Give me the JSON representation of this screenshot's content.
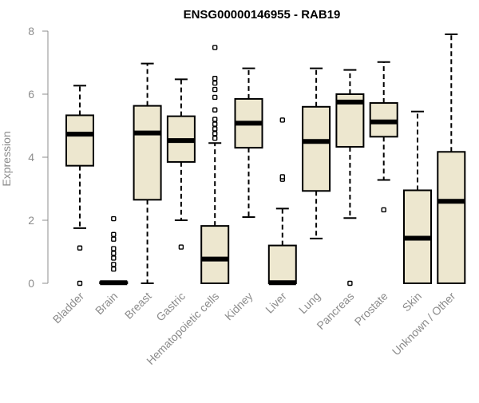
{
  "chart_data": {
    "type": "box",
    "title": "ENSG00000146955 - RAB19",
    "xlabel": "",
    "ylabel": "Expression",
    "ylim": [
      0,
      8
    ],
    "yticks": [
      0,
      2,
      4,
      6,
      8
    ],
    "categories": [
      "Bladder",
      "Brain",
      "Breast",
      "Gastric",
      "Hematopoietic cells",
      "Kidney",
      "Liver",
      "Lung",
      "Pancreas",
      "Prostate",
      "Skin",
      "Unknown / Other"
    ],
    "boxes": [
      {
        "name": "Bladder",
        "whisker_low": 1.75,
        "q1": 3.73,
        "median": 4.73,
        "q3": 5.33,
        "whisker_high": 6.27,
        "outliers": [
          1.12,
          0.0
        ]
      },
      {
        "name": "Brain",
        "whisker_low": 0.0,
        "q1": 0.0,
        "median": 0.02,
        "q3": 0.04,
        "whisker_high": 0.06,
        "outliers": [
          0.45,
          0.6,
          0.8,
          0.95,
          1.1,
          1.4,
          1.55,
          2.05
        ]
      },
      {
        "name": "Breast",
        "whisker_low": 0.0,
        "q1": 2.65,
        "median": 4.77,
        "q3": 5.63,
        "whisker_high": 6.97,
        "outliers": []
      },
      {
        "name": "Gastric",
        "whisker_low": 2.0,
        "q1": 3.85,
        "median": 4.53,
        "q3": 5.3,
        "whisker_high": 6.47,
        "outliers": [
          1.15
        ]
      },
      {
        "name": "Hematopoietic cells",
        "whisker_low": 0.0,
        "q1": 0.0,
        "median": 0.77,
        "q3": 1.82,
        "whisker_high": 4.45,
        "outliers": [
          4.6,
          4.75,
          4.9,
          5.05,
          5.2,
          5.5,
          5.9,
          6.15,
          6.35,
          6.5,
          7.48
        ]
      },
      {
        "name": "Kidney",
        "whisker_low": 2.1,
        "q1": 4.3,
        "median": 5.08,
        "q3": 5.85,
        "whisker_high": 6.82,
        "outliers": []
      },
      {
        "name": "Liver",
        "whisker_low": 0.0,
        "q1": 0.0,
        "median": 0.02,
        "q3": 1.2,
        "whisker_high": 2.37,
        "outliers": [
          3.3,
          3.38,
          5.18
        ]
      },
      {
        "name": "Lung",
        "whisker_low": 1.42,
        "q1": 2.93,
        "median": 4.5,
        "q3": 5.6,
        "whisker_high": 6.82,
        "outliers": []
      },
      {
        "name": "Pancreas",
        "whisker_low": 2.07,
        "q1": 4.33,
        "median": 5.75,
        "q3": 6.0,
        "whisker_high": 6.77,
        "outliers": [
          0.0
        ]
      },
      {
        "name": "Prostate",
        "whisker_low": 3.28,
        "q1": 4.65,
        "median": 5.12,
        "q3": 5.72,
        "whisker_high": 7.02,
        "outliers": [
          2.33
        ]
      },
      {
        "name": "Skin",
        "whisker_low": 0.0,
        "q1": 0.0,
        "median": 1.43,
        "q3": 2.95,
        "whisker_high": 5.45,
        "outliers": []
      },
      {
        "name": "Unknown / Other",
        "whisker_low": 0.0,
        "q1": 0.0,
        "median": 2.6,
        "q3": 4.17,
        "whisker_high": 7.9,
        "outliers": []
      }
    ],
    "colors": {
      "box_fill": "#ede7cf",
      "box_stroke": "#000000",
      "axis": "#8c8c8c",
      "text": "#8c8c8c",
      "title": "#000000"
    },
    "grid": false
  }
}
